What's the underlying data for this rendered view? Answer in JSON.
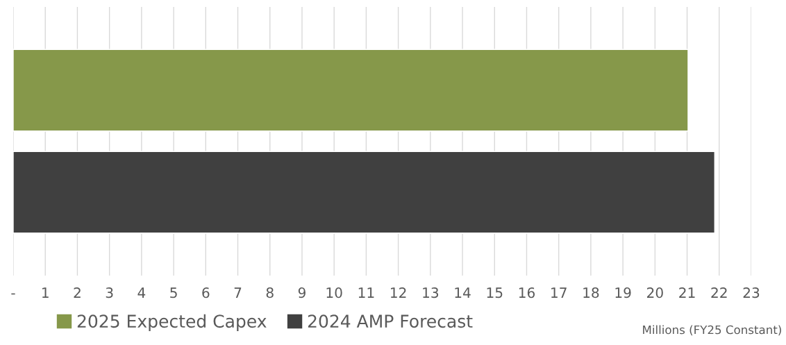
{
  "chart_data": {
    "type": "bar",
    "orientation": "horizontal",
    "categories": [
      null
    ],
    "series": [
      {
        "name": "2025 Expected Capex",
        "color": "#86984a",
        "values": [
          21.03
        ]
      },
      {
        "name": "2024 AMP Forecast",
        "color": "#404040",
        "values": [
          21.86
        ]
      }
    ],
    "xlim": [
      0,
      23
    ],
    "xticks": [
      {
        "value": 0,
        "label": "-"
      },
      1,
      2,
      3,
      4,
      5,
      6,
      7,
      8,
      9,
      10,
      11,
      12,
      13,
      14,
      15,
      16,
      17,
      18,
      19,
      20,
      21,
      22,
      23
    ],
    "grid": "x",
    "legend": "bottom",
    "annotations": [
      "Millions (FY25 Constant)"
    ]
  }
}
